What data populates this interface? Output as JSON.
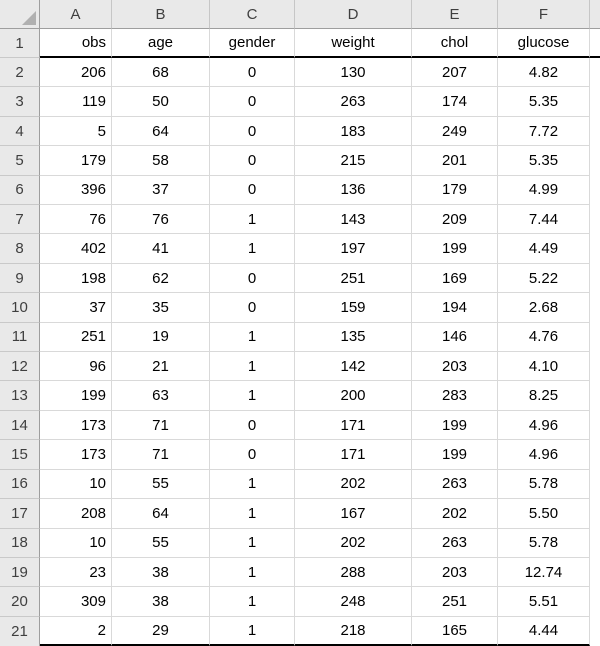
{
  "sheet": {
    "name": "spreadsheet-grid",
    "column_letters": [
      "A",
      "B",
      "C",
      "D",
      "E",
      "F"
    ],
    "header_row": {
      "row_number": "1",
      "cells": [
        "obs",
        "age",
        "gender",
        "weight",
        "chol",
        "glucose"
      ]
    },
    "data_rows": [
      {
        "row_number": "2",
        "cells": [
          "206",
          "68",
          "0",
          "130",
          "207",
          "4.82"
        ]
      },
      {
        "row_number": "3",
        "cells": [
          "119",
          "50",
          "0",
          "263",
          "174",
          "5.35"
        ]
      },
      {
        "row_number": "4",
        "cells": [
          "5",
          "64",
          "0",
          "183",
          "249",
          "7.72"
        ]
      },
      {
        "row_number": "5",
        "cells": [
          "179",
          "58",
          "0",
          "215",
          "201",
          "5.35"
        ]
      },
      {
        "row_number": "6",
        "cells": [
          "396",
          "37",
          "0",
          "136",
          "179",
          "4.99"
        ]
      },
      {
        "row_number": "7",
        "cells": [
          "76",
          "76",
          "1",
          "143",
          "209",
          "7.44"
        ]
      },
      {
        "row_number": "8",
        "cells": [
          "402",
          "41",
          "1",
          "197",
          "199",
          "4.49"
        ]
      },
      {
        "row_number": "9",
        "cells": [
          "198",
          "62",
          "0",
          "251",
          "169",
          "5.22"
        ]
      },
      {
        "row_number": "10",
        "cells": [
          "37",
          "35",
          "0",
          "159",
          "194",
          "2.68"
        ]
      },
      {
        "row_number": "11",
        "cells": [
          "251",
          "19",
          "1",
          "135",
          "146",
          "4.76"
        ]
      },
      {
        "row_number": "12",
        "cells": [
          "96",
          "21",
          "1",
          "142",
          "203",
          "4.10"
        ]
      },
      {
        "row_number": "13",
        "cells": [
          "199",
          "63",
          "1",
          "200",
          "283",
          "8.25"
        ]
      },
      {
        "row_number": "14",
        "cells": [
          "173",
          "71",
          "0",
          "171",
          "199",
          "4.96"
        ]
      },
      {
        "row_number": "15",
        "cells": [
          "173",
          "71",
          "0",
          "171",
          "199",
          "4.96"
        ]
      },
      {
        "row_number": "16",
        "cells": [
          "10",
          "55",
          "1",
          "202",
          "263",
          "5.78"
        ]
      },
      {
        "row_number": "17",
        "cells": [
          "208",
          "64",
          "1",
          "167",
          "202",
          "5.50"
        ]
      },
      {
        "row_number": "18",
        "cells": [
          "10",
          "55",
          "1",
          "202",
          "263",
          "5.78"
        ]
      },
      {
        "row_number": "19",
        "cells": [
          "23",
          "38",
          "1",
          "288",
          "203",
          "12.74"
        ]
      },
      {
        "row_number": "20",
        "cells": [
          "309",
          "38",
          "1",
          "248",
          "251",
          "5.51"
        ]
      },
      {
        "row_number": "21",
        "cells": [
          "2",
          "29",
          "1",
          "218",
          "165",
          "4.44"
        ]
      }
    ],
    "colors": {
      "header_background": "#e9e9e9",
      "gridline": "#d9d9d9",
      "table_border": "#000000"
    }
  }
}
